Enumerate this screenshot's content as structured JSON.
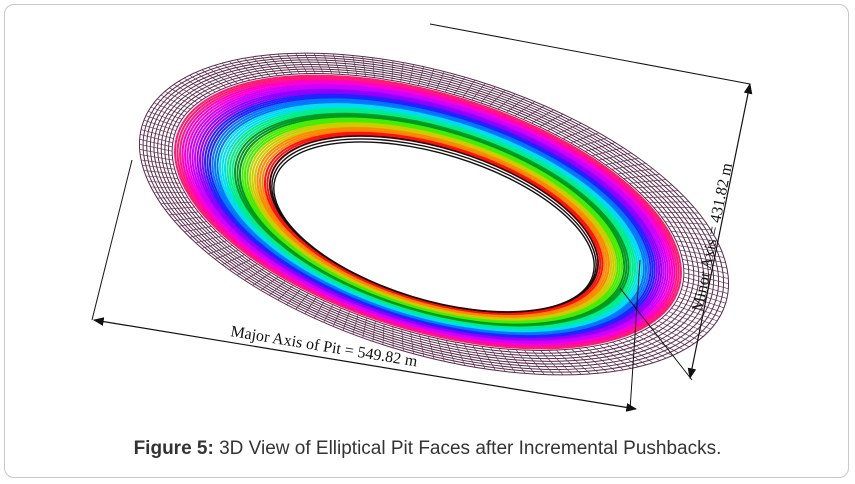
{
  "figure": {
    "major_axis_label": "Major Axis of Pit = 549.82 m",
    "minor_axis_label": "Minor Axis = 431.82 m",
    "colors": {
      "outer_mesh": "#5a2a4a",
      "inner_edge": "#111111",
      "line": "#111111",
      "rings": [
        "#ff1a75",
        "#ff00cc",
        "#cc00ff",
        "#8f00ff",
        "#2222ff",
        "#0077ff",
        "#00ddee",
        "#00ee88",
        "#009922",
        "#44ee00",
        "#cccc00",
        "#ff8800",
        "#ff1111"
      ]
    }
  },
  "caption": {
    "label": "Figure 5:",
    "text": " 3D View of Elliptical Pit Faces after Incremental Pushbacks."
  }
}
